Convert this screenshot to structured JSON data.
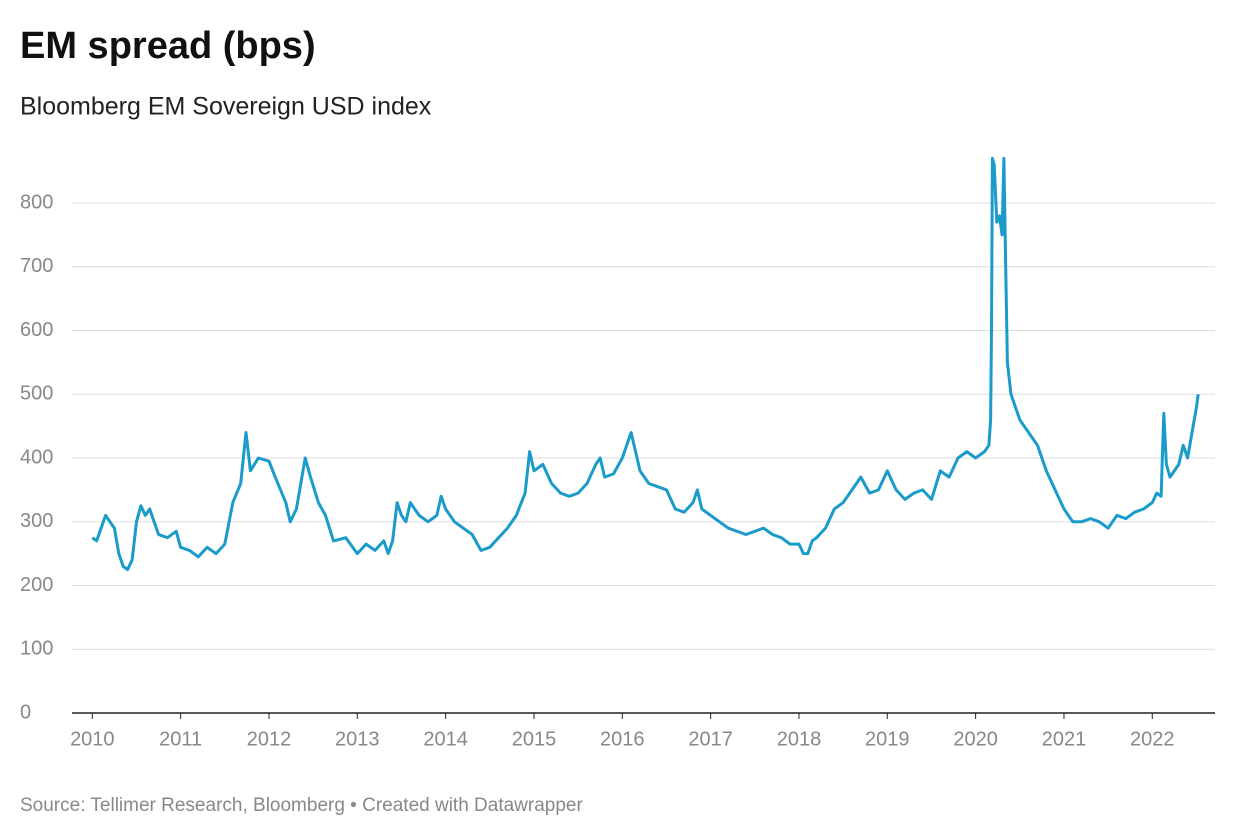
{
  "chart_data": {
    "type": "line",
    "title": "EM spread (bps)",
    "subtitle": "Bloomberg EM Sovereign USD index",
    "source": "Source: Tellimer Research, Bloomberg • Created with Datawrapper",
    "x": [
      2010.0,
      2010.05,
      2010.1,
      2010.15,
      2010.2,
      2010.25,
      2010.3,
      2010.35,
      2010.4,
      2010.45,
      2010.5,
      2010.55,
      2010.6,
      2010.65,
      2010.7,
      2010.75,
      2010.85,
      2010.95,
      2011.0,
      2011.1,
      2011.2,
      2011.3,
      2011.4,
      2011.5,
      2011.59,
      2011.68,
      2011.74,
      2011.79,
      2011.88,
      2012.0,
      2012.07,
      2012.19,
      2012.24,
      2012.31,
      2012.41,
      2012.47,
      2012.56,
      2012.64,
      2012.73,
      2012.87,
      2013.0,
      2013.1,
      2013.2,
      2013.3,
      2013.35,
      2013.4,
      2013.45,
      2013.5,
      2013.55,
      2013.6,
      2013.7,
      2013.8,
      2013.9,
      2013.95,
      2014.0,
      2014.1,
      2014.2,
      2014.3,
      2014.4,
      2014.5,
      2014.6,
      2014.7,
      2014.8,
      2014.9,
      2014.95,
      2015.0,
      2015.1,
      2015.2,
      2015.3,
      2015.4,
      2015.5,
      2015.6,
      2015.7,
      2015.75,
      2015.8,
      2015.9,
      2016.0,
      2016.1,
      2016.15,
      2016.2,
      2016.3,
      2016.4,
      2016.5,
      2016.6,
      2016.7,
      2016.8,
      2016.85,
      2016.9,
      2017.0,
      2017.1,
      2017.2,
      2017.3,
      2017.4,
      2017.5,
      2017.6,
      2017.7,
      2017.8,
      2017.9,
      2018.0,
      2018.05,
      2018.1,
      2018.15,
      2018.2,
      2018.3,
      2018.4,
      2018.5,
      2018.6,
      2018.7,
      2018.8,
      2018.9,
      2019.0,
      2019.1,
      2019.2,
      2019.3,
      2019.4,
      2019.5,
      2019.6,
      2019.7,
      2019.8,
      2019.9,
      2020.0,
      2020.1,
      2020.15,
      2020.17,
      2020.18,
      2020.19,
      2020.21,
      2020.24,
      2020.27,
      2020.3,
      2020.32,
      2020.34,
      2020.36,
      2020.4,
      2020.5,
      2020.6,
      2020.7,
      2020.8,
      2020.9,
      2021.0,
      2021.1,
      2021.2,
      2021.3,
      2021.4,
      2021.5,
      2021.6,
      2021.7,
      2021.8,
      2021.9,
      2022.0,
      2022.05,
      2022.1,
      2022.13,
      2022.16,
      2022.2,
      2022.3,
      2022.35,
      2022.4,
      2022.45,
      2022.5,
      2022.52
    ],
    "values": [
      275,
      270,
      290,
      310,
      300,
      290,
      250,
      230,
      225,
      240,
      300,
      325,
      310,
      320,
      300,
      280,
      275,
      285,
      260,
      255,
      245,
      260,
      250,
      265,
      330,
      360,
      440,
      380,
      400,
      395,
      370,
      330,
      300,
      320,
      400,
      370,
      330,
      310,
      270,
      275,
      250,
      265,
      255,
      270,
      250,
      270,
      330,
      310,
      300,
      330,
      310,
      300,
      310,
      340,
      320,
      300,
      290,
      280,
      255,
      260,
      275,
      290,
      310,
      345,
      410,
      380,
      390,
      360,
      345,
      340,
      345,
      360,
      390,
      400,
      370,
      375,
      400,
      440,
      410,
      380,
      360,
      355,
      350,
      320,
      315,
      330,
      350,
      320,
      310,
      300,
      290,
      285,
      280,
      285,
      290,
      280,
      275,
      265,
      265,
      250,
      250,
      270,
      275,
      290,
      320,
      330,
      350,
      370,
      345,
      350,
      380,
      350,
      335,
      345,
      350,
      335,
      380,
      370,
      400,
      410,
      400,
      410,
      420,
      460,
      600,
      870,
      860,
      770,
      780,
      750,
      870,
      700,
      550,
      500,
      460,
      440,
      420,
      380,
      350,
      320,
      300,
      300,
      305,
      300,
      290,
      310,
      305,
      315,
      320,
      330,
      345,
      340,
      470,
      390,
      370,
      390,
      420,
      400,
      440,
      480,
      500
    ],
    "color": "#1a9bc9",
    "xlim": [
      2009.77,
      2022.71
    ],
    "xticks": [
      2010,
      2011,
      2012,
      2013,
      2014,
      2015,
      2016,
      2017,
      2018,
      2019,
      2020,
      2021,
      2022
    ],
    "ylim": [
      0,
      880
    ],
    "yticks": [
      0,
      100,
      200,
      300,
      400,
      500,
      600,
      700,
      800
    ],
    "grid": true
  }
}
